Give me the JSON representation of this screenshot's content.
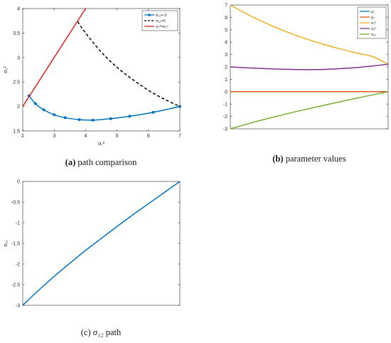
{
  "chart_data": [
    {
      "id": "a",
      "type": "line",
      "caption": {
        "letter": "(a)",
        "text": " path comparison"
      },
      "xlabel": "σ₁²",
      "ylabel": "σ₂²",
      "xlim": [
        2,
        7
      ],
      "ylim": [
        1.5,
        4
      ],
      "xticks": [
        2,
        3,
        4,
        5,
        6,
        7
      ],
      "yticks": [
        1.5,
        2,
        2.5,
        3,
        3.5,
        4
      ],
      "series": [
        {
          "name": "σ₁₂=-3",
          "color": "#0072BD",
          "style": "solid-marker",
          "x": [
            2.2,
            2.4,
            2.67,
            3.0,
            3.35,
            3.8,
            4.23,
            4.8,
            5.4,
            6.15,
            7.0
          ],
          "y": [
            2.22,
            2.06,
            1.93,
            1.83,
            1.77,
            1.73,
            1.72,
            1.75,
            1.8,
            1.88,
            2.0
          ]
        },
        {
          "name": "σ₁₂=0",
          "color": "#000000",
          "style": "dashed",
          "x": [
            3.75,
            4.0,
            4.5,
            5.0,
            5.5,
            6.0,
            6.5,
            7.0
          ],
          "y": [
            3.73,
            3.5,
            3.11,
            2.8,
            2.55,
            2.33,
            2.15,
            2.0
          ]
        },
        {
          "name": "σ₁²=σ₂²",
          "color": "#E0201B",
          "style": "solid",
          "x": [
            2.0,
            4.0
          ],
          "y": [
            2.0,
            4.0
          ]
        }
      ],
      "legend": "top-right"
    },
    {
      "id": "b",
      "type": "line",
      "caption": {
        "letter": "(b)",
        "text": " parameter values"
      },
      "xlim": [
        0,
        1
      ],
      "ylim": [
        -3,
        7
      ],
      "yticks": [
        -3,
        -2,
        -1,
        0,
        1,
        2,
        3,
        4,
        5,
        6,
        7
      ],
      "series": [
        {
          "name": "ρ₁",
          "color": "#0072BD",
          "x": [
            0,
            1
          ],
          "y": [
            0,
            0
          ]
        },
        {
          "name": "ρ₂",
          "color": "#D95319",
          "x": [
            0,
            1
          ],
          "y": [
            0,
            0
          ]
        },
        {
          "name": "σ₁²",
          "color": "#EDB120",
          "x": [
            0,
            0.1,
            0.2,
            0.3,
            0.4,
            0.5,
            0.6,
            0.7,
            0.8,
            0.9,
            1.0
          ],
          "y": [
            7.0,
            6.3,
            5.68,
            5.12,
            4.62,
            4.18,
            3.79,
            3.44,
            3.12,
            2.84,
            2.22
          ]
        },
        {
          "name": "σ₂²",
          "color": "#7E2F8E",
          "x": [
            0,
            0.1,
            0.2,
            0.3,
            0.4,
            0.5,
            0.6,
            0.7,
            0.8,
            0.9,
            1.0
          ],
          "y": [
            2.0,
            1.93,
            1.87,
            1.82,
            1.79,
            1.78,
            1.8,
            1.86,
            1.95,
            2.07,
            2.22
          ]
        },
        {
          "name": "σ₁₂",
          "color": "#77AC30",
          "x": [
            0,
            0.1,
            0.2,
            0.3,
            0.4,
            0.5,
            0.6,
            0.7,
            0.8,
            0.9,
            1.0
          ],
          "y": [
            -3.0,
            -2.64,
            -2.29,
            -1.97,
            -1.66,
            -1.37,
            -1.08,
            -0.8,
            -0.53,
            -0.26,
            0.0
          ]
        }
      ],
      "legend": "top-right"
    },
    {
      "id": "c",
      "type": "line",
      "caption": {
        "text": " path",
        "prefix": "(c) ",
        "symbol": "σ₁₂"
      },
      "ylabel": "σ₁₂",
      "xlim": [
        0,
        1
      ],
      "ylim": [
        -3,
        0
      ],
      "yticks": [
        -3,
        -2.5,
        -2,
        -1.5,
        -1,
        -0.5,
        0
      ],
      "series": [
        {
          "name": "",
          "color": "#0072BD",
          "x": [
            0,
            0.1,
            0.2,
            0.3,
            0.4,
            0.5,
            0.6,
            0.7,
            0.8,
            0.9,
            1.0
          ],
          "y": [
            -3.0,
            -2.64,
            -2.3,
            -1.98,
            -1.67,
            -1.38,
            -1.09,
            -0.81,
            -0.54,
            -0.27,
            0.0
          ]
        }
      ]
    }
  ]
}
